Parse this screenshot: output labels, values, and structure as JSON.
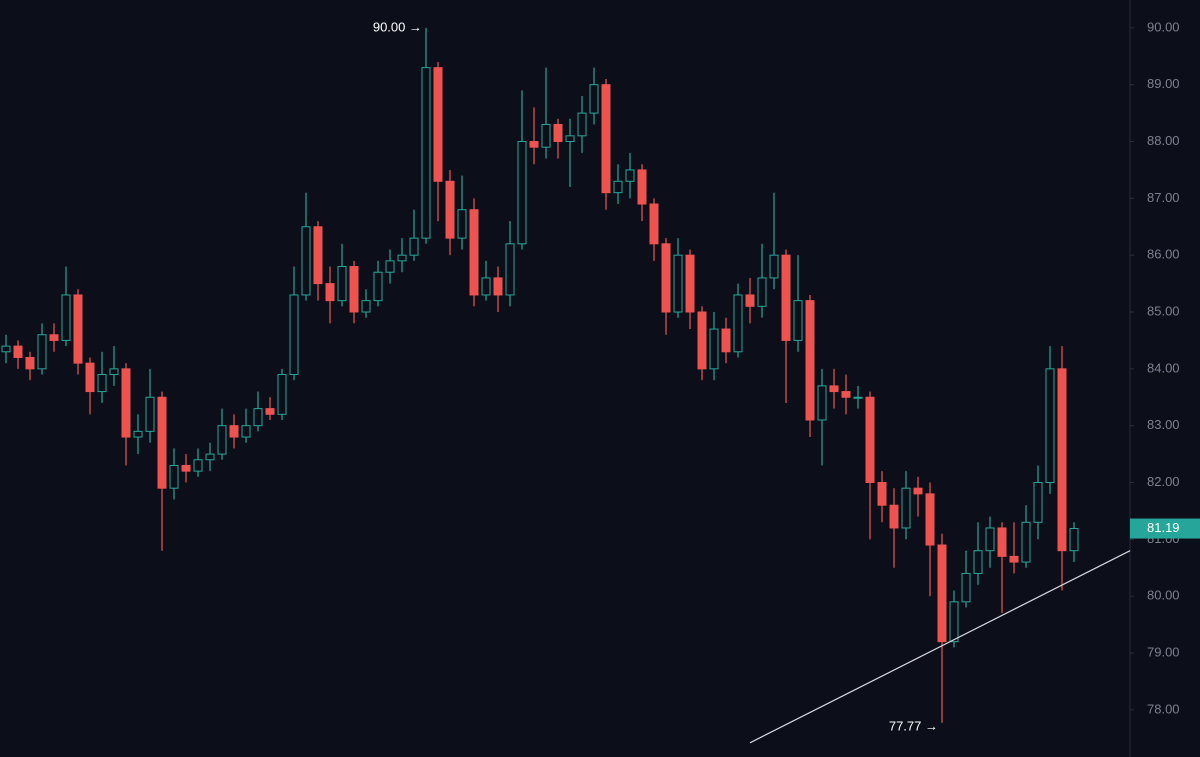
{
  "chart_data": {
    "type": "candlestick",
    "up_color": "#26a69a",
    "down_color": "#ef5350",
    "open": [
      84.3,
      84.4,
      84.2,
      84.0,
      84.6,
      84.5,
      85.3,
      84.1,
      83.6,
      83.9,
      84.0,
      82.8,
      82.9,
      83.5,
      81.9,
      82.3,
      82.2,
      82.4,
      82.5,
      83.0,
      82.8,
      83.0,
      83.3,
      83.2,
      83.9,
      85.3,
      86.5,
      85.5,
      85.2,
      85.8,
      85.0,
      85.2,
      85.7,
      85.9,
      86.0,
      86.3,
      89.3,
      87.3,
      86.3,
      86.8,
      85.3,
      85.6,
      85.3,
      86.2,
      88.0,
      87.9,
      88.3,
      88.0,
      88.1,
      88.5,
      89.0,
      87.1,
      87.3,
      87.5,
      86.9,
      86.2,
      85.0,
      86.0,
      85.0,
      84.0,
      84.7,
      84.3,
      85.3,
      85.1,
      85.6,
      86.0,
      84.5,
      85.2,
      83.1,
      83.7,
      83.6,
      83.5,
      83.5,
      82.0,
      81.6,
      81.2,
      81.9,
      81.8,
      80.9,
      79.2,
      79.9,
      80.4,
      80.8,
      81.2,
      80.7,
      80.6,
      81.3,
      82.0,
      84.0,
      80.8
    ],
    "high": [
      84.6,
      84.5,
      84.3,
      84.8,
      84.8,
      85.8,
      85.4,
      84.2,
      84.3,
      84.4,
      84.1,
      83.2,
      84.0,
      83.6,
      82.6,
      82.5,
      82.6,
      82.7,
      83.3,
      83.2,
      83.3,
      83.6,
      83.5,
      84.0,
      85.8,
      87.1,
      86.6,
      85.8,
      86.2,
      85.9,
      85.4,
      85.9,
      86.1,
      86.3,
      86.8,
      90.0,
      89.4,
      87.5,
      87.4,
      87.0,
      85.9,
      85.8,
      86.6,
      88.9,
      88.6,
      89.3,
      88.4,
      88.4,
      88.8,
      89.3,
      89.1,
      87.6,
      87.8,
      87.6,
      87.0,
      86.3,
      86.3,
      86.1,
      85.1,
      85.0,
      84.9,
      85.5,
      85.6,
      86.2,
      87.1,
      86.1,
      86.0,
      85.3,
      84.0,
      84.0,
      83.9,
      83.7,
      83.6,
      82.2,
      81.9,
      82.2,
      82.1,
      82.0,
      81.1,
      80.1,
      80.8,
      81.3,
      81.4,
      81.3,
      81.3,
      81.6,
      82.3,
      84.4,
      84.4,
      81.3
    ],
    "low": [
      84.1,
      84.0,
      83.8,
      83.9,
      84.3,
      84.4,
      83.9,
      83.2,
      83.4,
      83.7,
      82.3,
      82.5,
      82.7,
      80.8,
      81.7,
      82.0,
      82.1,
      82.2,
      82.4,
      82.6,
      82.7,
      82.9,
      83.1,
      83.1,
      83.8,
      85.2,
      85.2,
      84.8,
      85.1,
      84.8,
      84.9,
      85.1,
      85.5,
      85.7,
      85.9,
      86.2,
      86.6,
      86.0,
      86.1,
      85.1,
      85.2,
      85.0,
      85.1,
      86.1,
      87.6,
      87.7,
      87.7,
      87.2,
      87.8,
      88.3,
      86.8,
      86.9,
      87.0,
      86.6,
      85.9,
      84.6,
      84.9,
      84.7,
      83.8,
      83.8,
      84.1,
      84.2,
      84.8,
      84.9,
      85.4,
      83.4,
      84.3,
      82.8,
      82.3,
      83.3,
      83.2,
      83.3,
      81.0,
      81.3,
      80.5,
      81.0,
      81.4,
      80.0,
      77.77,
      79.1,
      79.8,
      80.2,
      80.5,
      79.7,
      80.4,
      80.5,
      81.0,
      81.8,
      80.1,
      80.6
    ],
    "close": [
      84.4,
      84.2,
      84.0,
      84.6,
      84.5,
      85.3,
      84.1,
      83.6,
      83.9,
      84.0,
      82.8,
      82.9,
      83.5,
      81.9,
      82.3,
      82.2,
      82.4,
      82.5,
      83.0,
      82.8,
      83.0,
      83.3,
      83.2,
      83.9,
      85.3,
      86.5,
      85.5,
      85.2,
      85.8,
      85.0,
      85.2,
      85.7,
      85.9,
      86.0,
      86.3,
      89.3,
      87.3,
      86.3,
      86.8,
      85.3,
      85.6,
      85.3,
      86.2,
      88.0,
      87.9,
      88.3,
      88.0,
      88.1,
      88.5,
      89.0,
      87.1,
      87.3,
      87.5,
      86.9,
      86.2,
      85.0,
      86.0,
      85.0,
      84.0,
      84.7,
      84.3,
      85.3,
      85.1,
      85.6,
      86.0,
      84.5,
      85.2,
      83.1,
      83.7,
      83.6,
      83.5,
      83.5,
      82.0,
      81.6,
      81.2,
      81.9,
      81.8,
      80.9,
      79.2,
      79.9,
      80.4,
      80.8,
      81.2,
      80.7,
      80.6,
      81.3,
      82.0,
      84.0,
      80.8,
      81.19
    ],
    "ylim": [
      77.17,
      90.49
    ],
    "yticks": [
      {
        "value": 78,
        "label": "78.00"
      },
      {
        "value": 79,
        "label": "79.00"
      },
      {
        "value": 80,
        "label": "80.00"
      },
      {
        "value": 81,
        "label": "81.00"
      },
      {
        "value": 82,
        "label": "82.00"
      },
      {
        "value": 83,
        "label": "83.00"
      },
      {
        "value": 84,
        "label": "84.00"
      },
      {
        "value": 85,
        "label": "85.00"
      },
      {
        "value": 86,
        "label": "86.00"
      },
      {
        "value": 87,
        "label": "87.00"
      },
      {
        "value": 88,
        "label": "88.00"
      },
      {
        "value": 89,
        "label": "89.00"
      },
      {
        "value": 90,
        "label": "90.00"
      }
    ],
    "last_price": 81.19,
    "annotations": [
      {
        "value": 90.0,
        "label": "90.00 →",
        "kind": "high"
      },
      {
        "value": 77.77,
        "label": "77.77 →",
        "kind": "low"
      }
    ],
    "trendline": {
      "x": [
        62,
        93.67
      ],
      "y": [
        77.42,
        80.8
      ],
      "color": "#d8d8dc"
    }
  }
}
